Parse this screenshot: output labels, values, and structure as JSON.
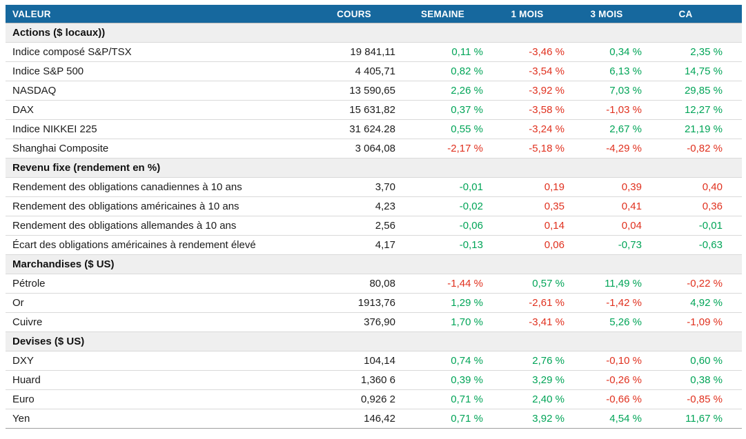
{
  "colors": {
    "header_bg": "#16689E",
    "header_text": "#FFFFFF",
    "section_bg": "#EFEFEF",
    "positive": "#00A457",
    "negative": "#E0301E",
    "row_border": "#D9D9D9"
  },
  "chart_data": {
    "type": "table",
    "columns": [
      "VALEUR",
      "COURS",
      "SEMAINE",
      "1 MOIS",
      "3 MOIS",
      "CA"
    ],
    "sections": [
      {
        "title": "Actions ($ locaux))",
        "rows": [
          {
            "label": "Indice composé S&P/TSX",
            "cours": "19 841,11",
            "cells": [
              [
                "0,11 %",
                "g"
              ],
              [
                "-3,46 %",
                "r"
              ],
              [
                "0,34 %",
                "g"
              ],
              [
                "2,35 %",
                "g"
              ]
            ]
          },
          {
            "label": "Indice S&P 500",
            "cours": "4 405,71",
            "cells": [
              [
                "0,82 %",
                "g"
              ],
              [
                "-3,54 %",
                "r"
              ],
              [
                "6,13 %",
                "g"
              ],
              [
                "14,75 %",
                "g"
              ]
            ]
          },
          {
            "label": "NASDAQ",
            "cours": "13 590,65",
            "cells": [
              [
                "2,26 %",
                "g"
              ],
              [
                "-3,92 %",
                "r"
              ],
              [
                "7,03 %",
                "g"
              ],
              [
                "29,85 %",
                "g"
              ]
            ]
          },
          {
            "label": "DAX",
            "cours": "15 631,82",
            "cells": [
              [
                "0,37 %",
                "g"
              ],
              [
                "-3,58 %",
                "r"
              ],
              [
                "-1,03 %",
                "r"
              ],
              [
                "12,27 %",
                "g"
              ]
            ]
          },
          {
            "label": "Indice NIKKEI 225",
            "cours": "31 624.28",
            "cells": [
              [
                "0,55 %",
                "g"
              ],
              [
                "-3,24 %",
                "r"
              ],
              [
                "2,67 %",
                "g"
              ],
              [
                "21,19 %",
                "g"
              ]
            ]
          },
          {
            "label": "Shanghai Composite",
            "cours": "3 064,08",
            "cells": [
              [
                "-2,17 %",
                "r"
              ],
              [
                "-5,18 %",
                "r"
              ],
              [
                "-4,29 %",
                "r"
              ],
              [
                "-0,82 %",
                "r"
              ]
            ]
          }
        ]
      },
      {
        "title": "Revenu fixe (rendement en %)",
        "rows": [
          {
            "label": "Rendement des obligations canadiennes à 10 ans",
            "cours": "3,70",
            "cells": [
              [
                "-0,01",
                "g"
              ],
              [
                "0,19",
                "r"
              ],
              [
                "0,39",
                "r"
              ],
              [
                "0,40",
                "r"
              ]
            ]
          },
          {
            "label": "Rendement des obligations américaines à 10 ans",
            "cours": "4,23",
            "cells": [
              [
                "-0,02",
                "g"
              ],
              [
                "0,35",
                "r"
              ],
              [
                "0,41",
                "r"
              ],
              [
                "0,36",
                "r"
              ]
            ]
          },
          {
            "label": "Rendement des obligations allemandes à 10 ans",
            "cours": "2,56",
            "cells": [
              [
                "-0,06",
                "g"
              ],
              [
                "0,14",
                "r"
              ],
              [
                "0,04",
                "r"
              ],
              [
                "-0,01",
                "g"
              ]
            ]
          },
          {
            "label": "Écart des obligations américaines à rendement élevé",
            "cours": "4,17",
            "cells": [
              [
                "-0,13",
                "g"
              ],
              [
                "0,06",
                "r"
              ],
              [
                "-0,73",
                "g"
              ],
              [
                "-0,63",
                "g"
              ]
            ]
          }
        ]
      },
      {
        "title": "Marchandises ($ US)",
        "rows": [
          {
            "label": "Pétrole",
            "cours": "80,08",
            "cells": [
              [
                "-1,44 %",
                "r"
              ],
              [
                "0,57 %",
                "g"
              ],
              [
                "11,49 %",
                "g"
              ],
              [
                "-0,22 %",
                "r"
              ]
            ]
          },
          {
            "label": "Or",
            "cours": "1913,76",
            "cells": [
              [
                "1,29 %",
                "g"
              ],
              [
                "-2,61 %",
                "r"
              ],
              [
                "-1,42 %",
                "r"
              ],
              [
                "4,92 %",
                "g"
              ]
            ]
          },
          {
            "label": "Cuivre",
            "cours": "376,90",
            "cells": [
              [
                "1,70 %",
                "g"
              ],
              [
                "-3,41 %",
                "r"
              ],
              [
                "5,26 %",
                "g"
              ],
              [
                "-1,09 %",
                "r"
              ]
            ]
          }
        ]
      },
      {
        "title": "Devises ($ US)",
        "rows": [
          {
            "label": "DXY",
            "cours": "104,14",
            "cells": [
              [
                "0,74 %",
                "g"
              ],
              [
                "2,76 %",
                "g"
              ],
              [
                "-0,10 %",
                "r"
              ],
              [
                "0,60 %",
                "g"
              ]
            ]
          },
          {
            "label": "Huard",
            "cours": "1,360 6",
            "cells": [
              [
                "0,39 %",
                "g"
              ],
              [
                "3,29 %",
                "g"
              ],
              [
                "-0,26 %",
                "r"
              ],
              [
                "0,38 %",
                "g"
              ]
            ]
          },
          {
            "label": "Euro",
            "cours": "0,926 2",
            "cells": [
              [
                "0,71 %",
                "g"
              ],
              [
                "2,40 %",
                "g"
              ],
              [
                "-0,66 %",
                "r"
              ],
              [
                "-0,85 %",
                "r"
              ]
            ]
          },
          {
            "label": "Yen",
            "cours": "146,42",
            "cells": [
              [
                "0,71 %",
                "g"
              ],
              [
                "3,92 %",
                "g"
              ],
              [
                "4,54 %",
                "g"
              ],
              [
                "11,67 %",
                "g"
              ]
            ]
          }
        ]
      }
    ]
  }
}
